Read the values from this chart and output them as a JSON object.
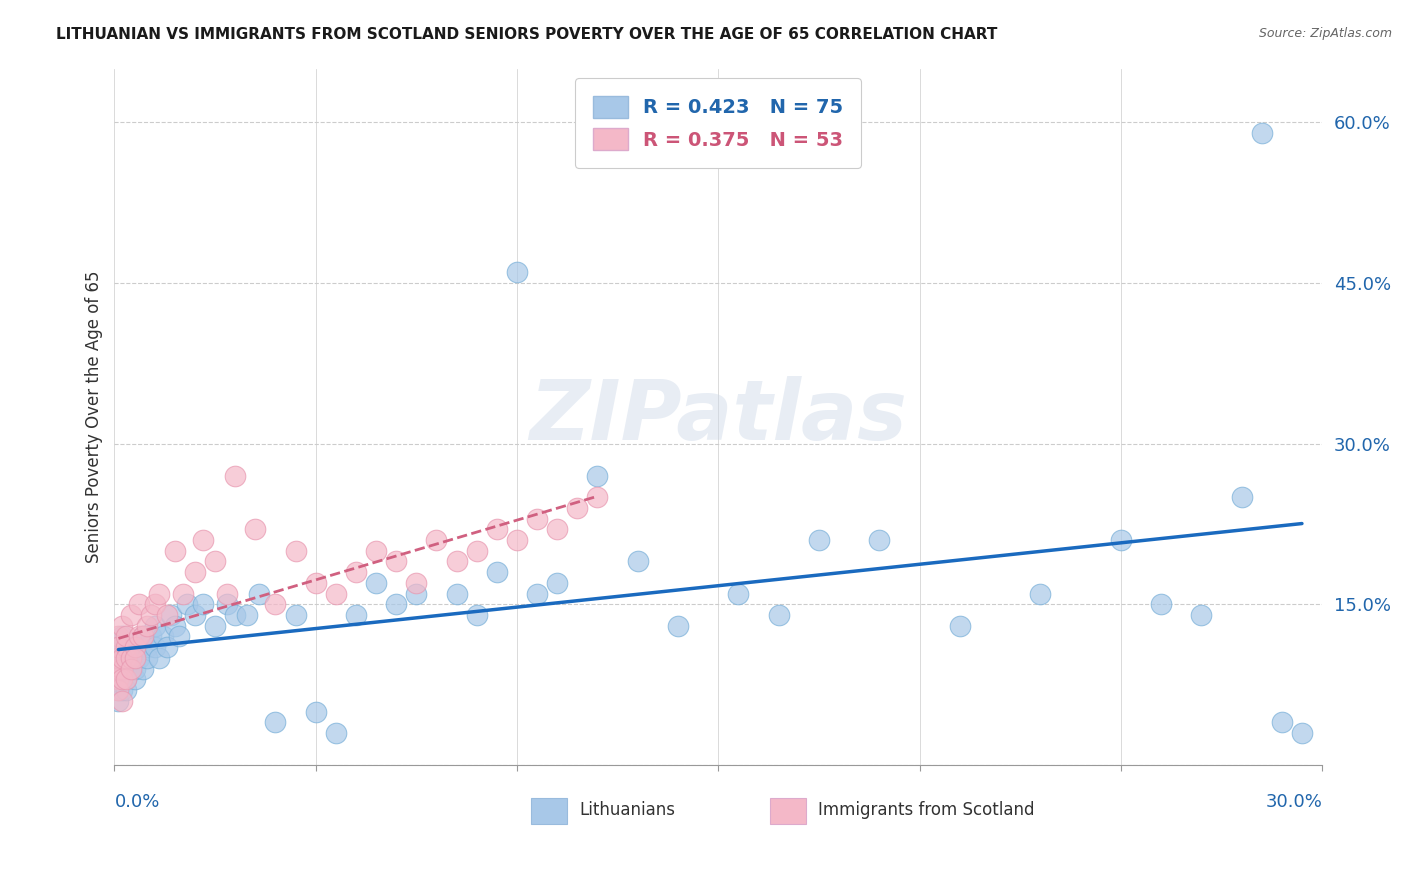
{
  "title": "LITHUANIAN VS IMMIGRANTS FROM SCOTLAND SENIORS POVERTY OVER THE AGE OF 65 CORRELATION CHART",
  "source": "Source: ZipAtlas.com",
  "ylabel": "Seniors Poverty Over the Age of 65",
  "xlim": [
    0.0,
    0.3
  ],
  "ylim": [
    0.0,
    0.65
  ],
  "yticks": [
    0.0,
    0.15,
    0.3,
    0.45,
    0.6
  ],
  "ytick_labels": [
    "",
    "15.0%",
    "30.0%",
    "45.0%",
    "60.0%"
  ],
  "xtick_labels_bottom": [
    "0.0%",
    "30.0%"
  ],
  "legend_blue_label": "R = 0.423   N = 75",
  "legend_pink_label": "R = 0.375   N = 53",
  "legend_label_blue": "Lithuanians",
  "legend_label_pink": "Immigrants from Scotland",
  "blue_color": "#a8c8e8",
  "pink_color": "#f4b8c8",
  "trendline_blue_color": "#1a6abf",
  "trendline_pink_color": "#d06080",
  "watermark_text": "ZIPatlas",
  "background_color": "#ffffff",
  "grid_color": "#cccccc",
  "blue_x": [
    0.001,
    0.001,
    0.001,
    0.001,
    0.001,
    0.001,
    0.002,
    0.002,
    0.002,
    0.002,
    0.002,
    0.002,
    0.003,
    0.003,
    0.003,
    0.003,
    0.004,
    0.004,
    0.004,
    0.005,
    0.005,
    0.005,
    0.006,
    0.006,
    0.007,
    0.007,
    0.008,
    0.008,
    0.009,
    0.01,
    0.01,
    0.011,
    0.012,
    0.013,
    0.014,
    0.015,
    0.016,
    0.018,
    0.02,
    0.022,
    0.025,
    0.028,
    0.03,
    0.033,
    0.036,
    0.04,
    0.045,
    0.05,
    0.055,
    0.06,
    0.065,
    0.07,
    0.075,
    0.085,
    0.09,
    0.095,
    0.1,
    0.105,
    0.11,
    0.12,
    0.13,
    0.14,
    0.155,
    0.165,
    0.175,
    0.19,
    0.21,
    0.23,
    0.25,
    0.26,
    0.27,
    0.28,
    0.285,
    0.29,
    0.295
  ],
  "blue_y": [
    0.08,
    0.09,
    0.1,
    0.11,
    0.07,
    0.06,
    0.09,
    0.1,
    0.08,
    0.07,
    0.11,
    0.12,
    0.08,
    0.09,
    0.1,
    0.07,
    0.09,
    0.1,
    0.11,
    0.08,
    0.1,
    0.09,
    0.1,
    0.11,
    0.09,
    0.12,
    0.11,
    0.1,
    0.12,
    0.11,
    0.13,
    0.1,
    0.12,
    0.11,
    0.14,
    0.13,
    0.12,
    0.15,
    0.14,
    0.15,
    0.13,
    0.15,
    0.14,
    0.14,
    0.16,
    0.04,
    0.14,
    0.05,
    0.03,
    0.14,
    0.17,
    0.15,
    0.16,
    0.16,
    0.14,
    0.18,
    0.46,
    0.16,
    0.17,
    0.27,
    0.19,
    0.13,
    0.16,
    0.14,
    0.21,
    0.21,
    0.13,
    0.16,
    0.21,
    0.15,
    0.14,
    0.25,
    0.59,
    0.04,
    0.03
  ],
  "pink_x": [
    0.001,
    0.001,
    0.001,
    0.001,
    0.001,
    0.001,
    0.002,
    0.002,
    0.002,
    0.002,
    0.002,
    0.003,
    0.003,
    0.003,
    0.003,
    0.004,
    0.004,
    0.004,
    0.005,
    0.005,
    0.006,
    0.006,
    0.007,
    0.008,
    0.009,
    0.01,
    0.011,
    0.013,
    0.015,
    0.017,
    0.02,
    0.022,
    0.025,
    0.028,
    0.03,
    0.035,
    0.04,
    0.045,
    0.05,
    0.055,
    0.06,
    0.065,
    0.07,
    0.075,
    0.08,
    0.085,
    0.09,
    0.095,
    0.1,
    0.105,
    0.11,
    0.115,
    0.12
  ],
  "pink_y": [
    0.08,
    0.09,
    0.1,
    0.12,
    0.11,
    0.07,
    0.09,
    0.08,
    0.1,
    0.13,
    0.06,
    0.11,
    0.1,
    0.12,
    0.08,
    0.1,
    0.09,
    0.14,
    0.11,
    0.1,
    0.12,
    0.15,
    0.12,
    0.13,
    0.14,
    0.15,
    0.16,
    0.14,
    0.2,
    0.16,
    0.18,
    0.21,
    0.19,
    0.16,
    0.27,
    0.22,
    0.15,
    0.2,
    0.17,
    0.16,
    0.18,
    0.2,
    0.19,
    0.17,
    0.21,
    0.19,
    0.2,
    0.22,
    0.21,
    0.23,
    0.22,
    0.24,
    0.25
  ]
}
